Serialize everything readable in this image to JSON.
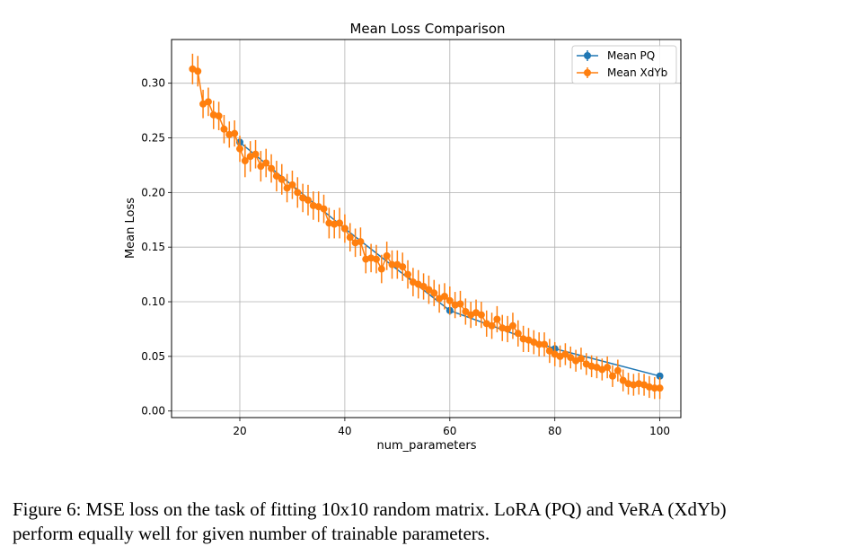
{
  "chart_data": {
    "type": "line",
    "title": "Mean Loss Comparison",
    "xlabel": "num_parameters",
    "ylabel": "Mean Loss",
    "xlim": [
      7,
      104
    ],
    "ylim": [
      -0.006,
      0.34
    ],
    "x_ticks": [
      20,
      40,
      60,
      80,
      100
    ],
    "x_tick_labels": [
      "20",
      "40",
      "60",
      "80",
      "100"
    ],
    "y_ticks": [
      0.0,
      0.05,
      0.1,
      0.15,
      0.2,
      0.25,
      0.3
    ],
    "y_tick_labels": [
      "0.00",
      "0.05",
      "0.10",
      "0.15",
      "0.20",
      "0.25",
      "0.30"
    ],
    "grid": true,
    "legend_position": "top-right",
    "series": [
      {
        "name": "Mean PQ",
        "color": "#1f77b4",
        "x": [
          20,
          40,
          60,
          80,
          100
        ],
        "y": [
          0.246,
          0.167,
          0.092,
          0.057,
          0.032
        ],
        "yerr": [
          0.002,
          0.002,
          0.002,
          0.002,
          0.002
        ]
      },
      {
        "name": "Mean XdYb",
        "color": "#ff7f0e",
        "x": [
          11,
          12,
          13,
          14,
          15,
          16,
          17,
          18,
          19,
          20,
          21,
          22,
          23,
          24,
          25,
          26,
          27,
          28,
          29,
          30,
          31,
          32,
          33,
          34,
          35,
          36,
          37,
          38,
          39,
          40,
          41,
          42,
          43,
          44,
          45,
          46,
          47,
          48,
          49,
          50,
          51,
          52,
          53,
          54,
          55,
          56,
          57,
          58,
          59,
          60,
          61,
          62,
          63,
          64,
          65,
          66,
          67,
          68,
          69,
          70,
          71,
          72,
          73,
          74,
          75,
          76,
          77,
          78,
          79,
          80,
          81,
          82,
          83,
          84,
          85,
          86,
          87,
          88,
          89,
          90,
          91,
          92,
          93,
          94,
          95,
          96,
          97,
          98,
          99,
          100
        ],
        "y": [
          0.313,
          0.311,
          0.281,
          0.283,
          0.271,
          0.27,
          0.258,
          0.253,
          0.254,
          0.24,
          0.229,
          0.233,
          0.235,
          0.224,
          0.227,
          0.222,
          0.215,
          0.212,
          0.204,
          0.207,
          0.2,
          0.195,
          0.193,
          0.188,
          0.187,
          0.185,
          0.172,
          0.171,
          0.172,
          0.167,
          0.159,
          0.154,
          0.155,
          0.139,
          0.14,
          0.139,
          0.13,
          0.142,
          0.134,
          0.134,
          0.132,
          0.125,
          0.118,
          0.116,
          0.114,
          0.111,
          0.108,
          0.103,
          0.105,
          0.101,
          0.097,
          0.098,
          0.091,
          0.088,
          0.09,
          0.088,
          0.08,
          0.078,
          0.084,
          0.076,
          0.075,
          0.078,
          0.071,
          0.066,
          0.065,
          0.063,
          0.061,
          0.061,
          0.055,
          0.052,
          0.05,
          0.052,
          0.049,
          0.046,
          0.048,
          0.043,
          0.041,
          0.04,
          0.038,
          0.04,
          0.032,
          0.037,
          0.028,
          0.025,
          0.024,
          0.025,
          0.024,
          0.022,
          0.021,
          0.021
        ],
        "yerr": [
          0.014,
          0.014,
          0.013,
          0.013,
          0.013,
          0.013,
          0.013,
          0.012,
          0.012,
          0.012,
          0.015,
          0.014,
          0.013,
          0.014,
          0.013,
          0.013,
          0.014,
          0.014,
          0.013,
          0.013,
          0.014,
          0.013,
          0.014,
          0.013,
          0.014,
          0.013,
          0.014,
          0.013,
          0.014,
          0.013,
          0.013,
          0.013,
          0.013,
          0.013,
          0.013,
          0.013,
          0.013,
          0.013,
          0.013,
          0.013,
          0.013,
          0.013,
          0.013,
          0.013,
          0.012,
          0.013,
          0.012,
          0.013,
          0.012,
          0.013,
          0.012,
          0.012,
          0.012,
          0.012,
          0.012,
          0.012,
          0.012,
          0.012,
          0.012,
          0.012,
          0.012,
          0.012,
          0.012,
          0.012,
          0.011,
          0.011,
          0.011,
          0.011,
          0.011,
          0.011,
          0.01,
          0.01,
          0.01,
          0.01,
          0.01,
          0.01,
          0.01,
          0.01,
          0.01,
          0.01,
          0.01,
          0.01,
          0.01,
          0.01,
          0.01,
          0.01,
          0.01,
          0.01,
          0.01,
          0.01
        ]
      }
    ]
  },
  "caption": {
    "line1": "Figure 6:  MSE loss on the task of fitting 10x10 random matrix.  LoRA (PQ) and VeRA (XdYb)",
    "line2": "perform equally well for given number of trainable parameters."
  }
}
